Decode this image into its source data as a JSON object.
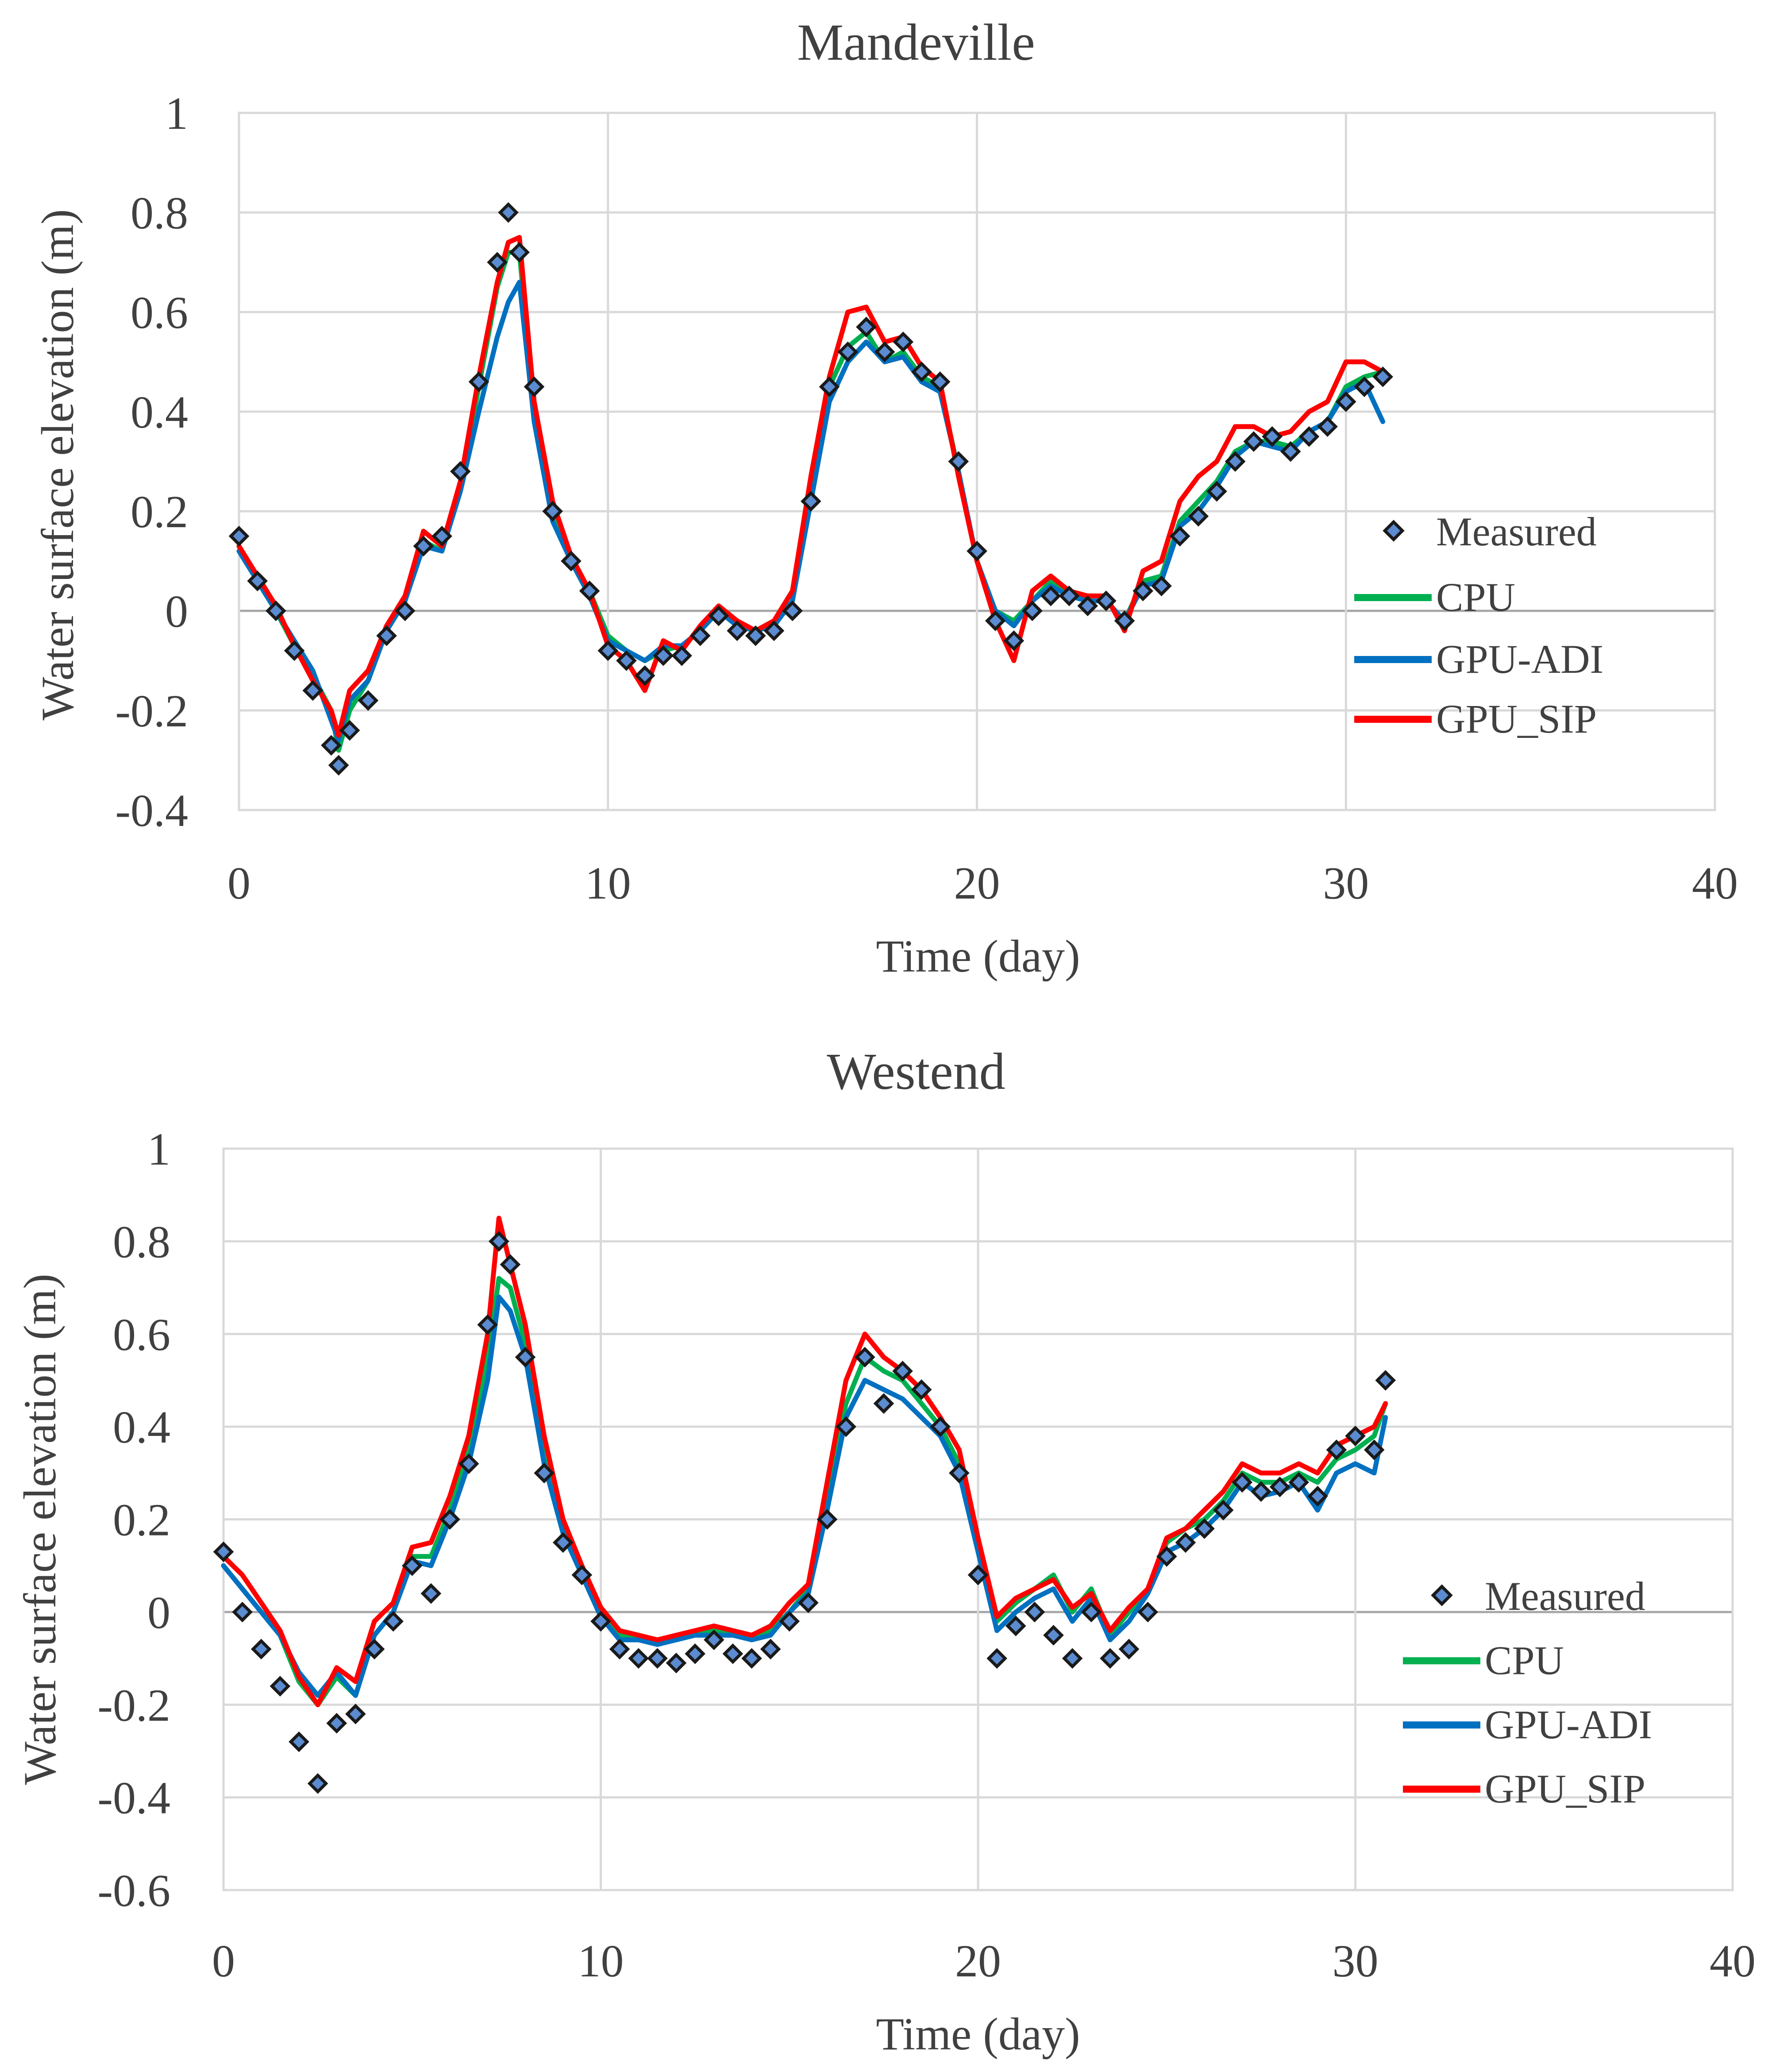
{
  "chart_data": [
    {
      "type": "line",
      "title": "Mandeville",
      "xlabel": "Time (day)",
      "ylabel": "Water surface elevation (m)",
      "xlim": [
        0,
        40
      ],
      "ylim": [
        -0.4,
        1
      ],
      "xticks": [
        "0",
        "10",
        "20",
        "30",
        "40"
      ],
      "yticks": [
        "1",
        "0.8",
        "0.6",
        "0.4",
        "0.2",
        "0",
        "-0.2",
        "-0.4"
      ],
      "grid": true,
      "legend_position": "right",
      "legend": [
        "Measured",
        "CPU",
        "GPU-ADI",
        "GPU_SIP"
      ],
      "x": [
        0,
        0.5,
        1,
        1.5,
        2,
        2.5,
        2.7,
        3,
        3.5,
        4,
        4.5,
        5,
        5.5,
        6,
        6.5,
        7,
        7.3,
        7.6,
        8,
        8.5,
        9,
        9.5,
        10,
        10.5,
        11,
        11.5,
        12,
        12.5,
        13,
        13.5,
        14,
        14.5,
        15,
        15.5,
        16,
        16.5,
        17,
        17.5,
        18,
        18.5,
        19,
        19.5,
        20,
        20.5,
        21,
        21.5,
        22,
        22.5,
        23,
        23.5,
        24,
        24.5,
        25,
        25.5,
        26,
        26.5,
        27,
        27.5,
        28,
        28.5,
        29,
        29.5,
        30,
        30.5,
        31
      ],
      "series": [
        {
          "name": "Measured",
          "values": [
            0.15,
            0.06,
            0.0,
            -0.08,
            -0.16,
            -0.27,
            -0.31,
            -0.24,
            -0.18,
            -0.05,
            0.0,
            0.13,
            0.15,
            0.28,
            0.46,
            0.7,
            0.8,
            0.72,
            0.45,
            0.2,
            0.1,
            0.04,
            -0.08,
            -0.1,
            -0.13,
            -0.09,
            -0.09,
            -0.05,
            -0.01,
            -0.04,
            -0.05,
            -0.04,
            0.0,
            0.22,
            0.45,
            0.52,
            0.57,
            0.52,
            0.54,
            0.48,
            0.46,
            0.3,
            0.12,
            -0.02,
            -0.06,
            0.0,
            0.03,
            0.03,
            0.01,
            0.02,
            -0.02,
            0.04,
            0.05,
            0.15,
            0.19,
            0.24,
            0.3,
            0.34,
            0.35,
            0.32,
            0.35,
            0.37,
            0.42,
            0.45,
            0.47
          ]
        },
        {
          "name": "CPU",
          "values": [
            0.13,
            0.06,
            0.0,
            -0.07,
            -0.13,
            -0.2,
            -0.28,
            -0.2,
            -0.14,
            -0.04,
            0.02,
            0.14,
            0.12,
            0.25,
            0.45,
            0.65,
            0.72,
            0.72,
            0.4,
            0.2,
            0.1,
            0.04,
            -0.05,
            -0.08,
            -0.1,
            -0.08,
            -0.07,
            -0.04,
            0.0,
            -0.03,
            -0.04,
            -0.03,
            0.02,
            0.25,
            0.45,
            0.53,
            0.56,
            0.5,
            0.52,
            0.47,
            0.45,
            0.28,
            0.1,
            0.0,
            -0.02,
            0.02,
            0.06,
            0.03,
            0.02,
            0.02,
            -0.02,
            0.06,
            0.07,
            0.18,
            0.22,
            0.26,
            0.32,
            0.34,
            0.34,
            0.33,
            0.36,
            0.38,
            0.45,
            0.47,
            0.48
          ]
        },
        {
          "name": "GPU-ADI",
          "values": [
            0.12,
            0.06,
            0.0,
            -0.06,
            -0.12,
            -0.22,
            -0.26,
            -0.18,
            -0.14,
            -0.04,
            0.02,
            0.13,
            0.12,
            0.24,
            0.4,
            0.55,
            0.62,
            0.66,
            0.38,
            0.18,
            0.1,
            0.03,
            -0.06,
            -0.08,
            -0.1,
            -0.07,
            -0.07,
            -0.04,
            0.0,
            -0.03,
            -0.04,
            -0.03,
            0.02,
            0.22,
            0.42,
            0.5,
            0.54,
            0.5,
            0.51,
            0.46,
            0.44,
            0.28,
            0.1,
            0.0,
            -0.03,
            0.02,
            0.05,
            0.03,
            0.02,
            0.02,
            -0.02,
            0.05,
            0.06,
            0.17,
            0.2,
            0.25,
            0.31,
            0.34,
            0.33,
            0.32,
            0.36,
            0.38,
            0.44,
            0.46,
            0.38
          ]
        },
        {
          "name": "GPU_SIP",
          "values": [
            0.13,
            0.07,
            0.01,
            -0.07,
            -0.14,
            -0.2,
            -0.25,
            -0.16,
            -0.12,
            -0.03,
            0.03,
            0.16,
            0.13,
            0.26,
            0.47,
            0.66,
            0.74,
            0.75,
            0.42,
            0.22,
            0.11,
            0.04,
            -0.07,
            -0.1,
            -0.16,
            -0.06,
            -0.08,
            -0.03,
            0.01,
            -0.02,
            -0.04,
            -0.02,
            0.04,
            0.27,
            0.47,
            0.6,
            0.61,
            0.54,
            0.55,
            0.49,
            0.46,
            0.27,
            0.1,
            -0.02,
            -0.1,
            0.04,
            0.07,
            0.04,
            0.03,
            0.03,
            -0.04,
            0.08,
            0.1,
            0.22,
            0.27,
            0.3,
            0.37,
            0.37,
            0.35,
            0.36,
            0.4,
            0.42,
            0.5,
            0.5,
            0.48
          ]
        }
      ]
    },
    {
      "type": "line",
      "title": "Westend",
      "xlabel": "Time (day)",
      "ylabel": "Water surface elevation (m)",
      "xlim": [
        0,
        40
      ],
      "ylim": [
        -0.6,
        1
      ],
      "xticks": [
        "0",
        "10",
        "20",
        "30",
        "40"
      ],
      "yticks": [
        "1",
        "0.8",
        "0.6",
        "0.4",
        "0.2",
        "0",
        "-0.2",
        "-0.4",
        "-0.6"
      ],
      "grid": true,
      "legend_position": "right",
      "legend": [
        "Measured",
        "CPU",
        "GPU-ADI",
        "GPU_SIP"
      ],
      "x": [
        0,
        0.5,
        1,
        1.5,
        2,
        2.5,
        3,
        3.5,
        4,
        4.5,
        5,
        5.5,
        6,
        6.5,
        7,
        7.3,
        7.6,
        8,
        8.5,
        9,
        9.5,
        10,
        10.5,
        11,
        11.5,
        12,
        12.5,
        13,
        13.5,
        14,
        14.5,
        15,
        15.5,
        16,
        16.5,
        17,
        17.5,
        18,
        18.5,
        19,
        19.5,
        20,
        20.5,
        21,
        21.5,
        22,
        22.5,
        23,
        23.5,
        24,
        24.5,
        25,
        25.5,
        26,
        26.5,
        27,
        27.5,
        28,
        28.5,
        29,
        29.5,
        30,
        30.5,
        30.8
      ],
      "series": [
        {
          "name": "Measured",
          "values": [
            0.13,
            0.0,
            -0.08,
            -0.16,
            -0.28,
            -0.37,
            -0.24,
            -0.22,
            -0.08,
            -0.02,
            0.1,
            0.04,
            0.2,
            0.32,
            0.62,
            0.8,
            0.75,
            0.55,
            0.3,
            0.15,
            0.08,
            -0.02,
            -0.08,
            -0.1,
            -0.1,
            -0.11,
            -0.09,
            -0.06,
            -0.09,
            -0.1,
            -0.08,
            -0.02,
            0.02,
            0.2,
            0.4,
            0.55,
            0.45,
            0.52,
            0.48,
            0.4,
            0.3,
            0.08,
            -0.1,
            -0.03,
            0.0,
            -0.05,
            -0.1,
            0.0,
            -0.1,
            -0.08,
            0.0,
            0.12,
            0.15,
            0.18,
            0.22,
            0.28,
            0.26,
            0.27,
            0.28,
            0.25,
            0.35,
            0.38,
            0.35,
            0.5
          ]
        },
        {
          "name": "CPU",
          "values": [
            0.1,
            0.05,
            0.0,
            -0.05,
            -0.15,
            -0.2,
            -0.14,
            -0.18,
            -0.05,
            0.0,
            0.12,
            0.12,
            0.22,
            0.35,
            0.55,
            0.72,
            0.7,
            0.58,
            0.35,
            0.18,
            0.08,
            0.0,
            -0.05,
            -0.05,
            -0.06,
            -0.06,
            -0.05,
            -0.04,
            -0.05,
            -0.05,
            -0.04,
            0.0,
            0.05,
            0.25,
            0.45,
            0.55,
            0.52,
            0.5,
            0.45,
            0.4,
            0.32,
            0.15,
            -0.02,
            0.02,
            0.05,
            0.08,
            0.0,
            0.05,
            -0.05,
            0.0,
            0.05,
            0.15,
            0.18,
            0.2,
            0.24,
            0.3,
            0.28,
            0.28,
            0.3,
            0.28,
            0.33,
            0.35,
            0.38,
            0.45
          ]
        },
        {
          "name": "GPU-ADI",
          "values": [
            0.1,
            0.05,
            0.0,
            -0.05,
            -0.13,
            -0.18,
            -0.13,
            -0.18,
            -0.05,
            0.0,
            0.11,
            0.1,
            0.2,
            0.32,
            0.5,
            0.68,
            0.65,
            0.55,
            0.32,
            0.17,
            0.08,
            -0.01,
            -0.06,
            -0.06,
            -0.07,
            -0.06,
            -0.05,
            -0.05,
            -0.05,
            -0.06,
            -0.05,
            0.0,
            0.04,
            0.22,
            0.42,
            0.5,
            0.48,
            0.46,
            0.42,
            0.38,
            0.3,
            0.13,
            -0.04,
            0.0,
            0.03,
            0.05,
            -0.02,
            0.03,
            -0.06,
            -0.02,
            0.04,
            0.13,
            0.15,
            0.18,
            0.22,
            0.28,
            0.25,
            0.26,
            0.28,
            0.22,
            0.3,
            0.32,
            0.3,
            0.42
          ]
        },
        {
          "name": "GPU_SIP",
          "values": [
            0.12,
            0.08,
            0.02,
            -0.04,
            -0.14,
            -0.2,
            -0.12,
            -0.15,
            -0.02,
            0.02,
            0.14,
            0.15,
            0.25,
            0.38,
            0.6,
            0.85,
            0.75,
            0.62,
            0.38,
            0.2,
            0.1,
            0.01,
            -0.04,
            -0.05,
            -0.06,
            -0.05,
            -0.04,
            -0.03,
            -0.04,
            -0.05,
            -0.03,
            0.02,
            0.06,
            0.28,
            0.5,
            0.6,
            0.55,
            0.52,
            0.48,
            0.42,
            0.35,
            0.16,
            -0.01,
            0.03,
            0.05,
            0.07,
            0.01,
            0.04,
            -0.04,
            0.01,
            0.05,
            0.16,
            0.18,
            0.22,
            0.26,
            0.32,
            0.3,
            0.3,
            0.32,
            0.3,
            0.36,
            0.38,
            0.4,
            0.45
          ]
        }
      ]
    }
  ],
  "colors": {
    "Measured_fill": "#5B8BD0",
    "Measured_stroke": "#1a1a1a",
    "CPU": "#00B050",
    "GPU-ADI": "#0070C0",
    "GPU_SIP": "#FF0000",
    "grid": "#d9d9d9",
    "text": "#404040"
  }
}
